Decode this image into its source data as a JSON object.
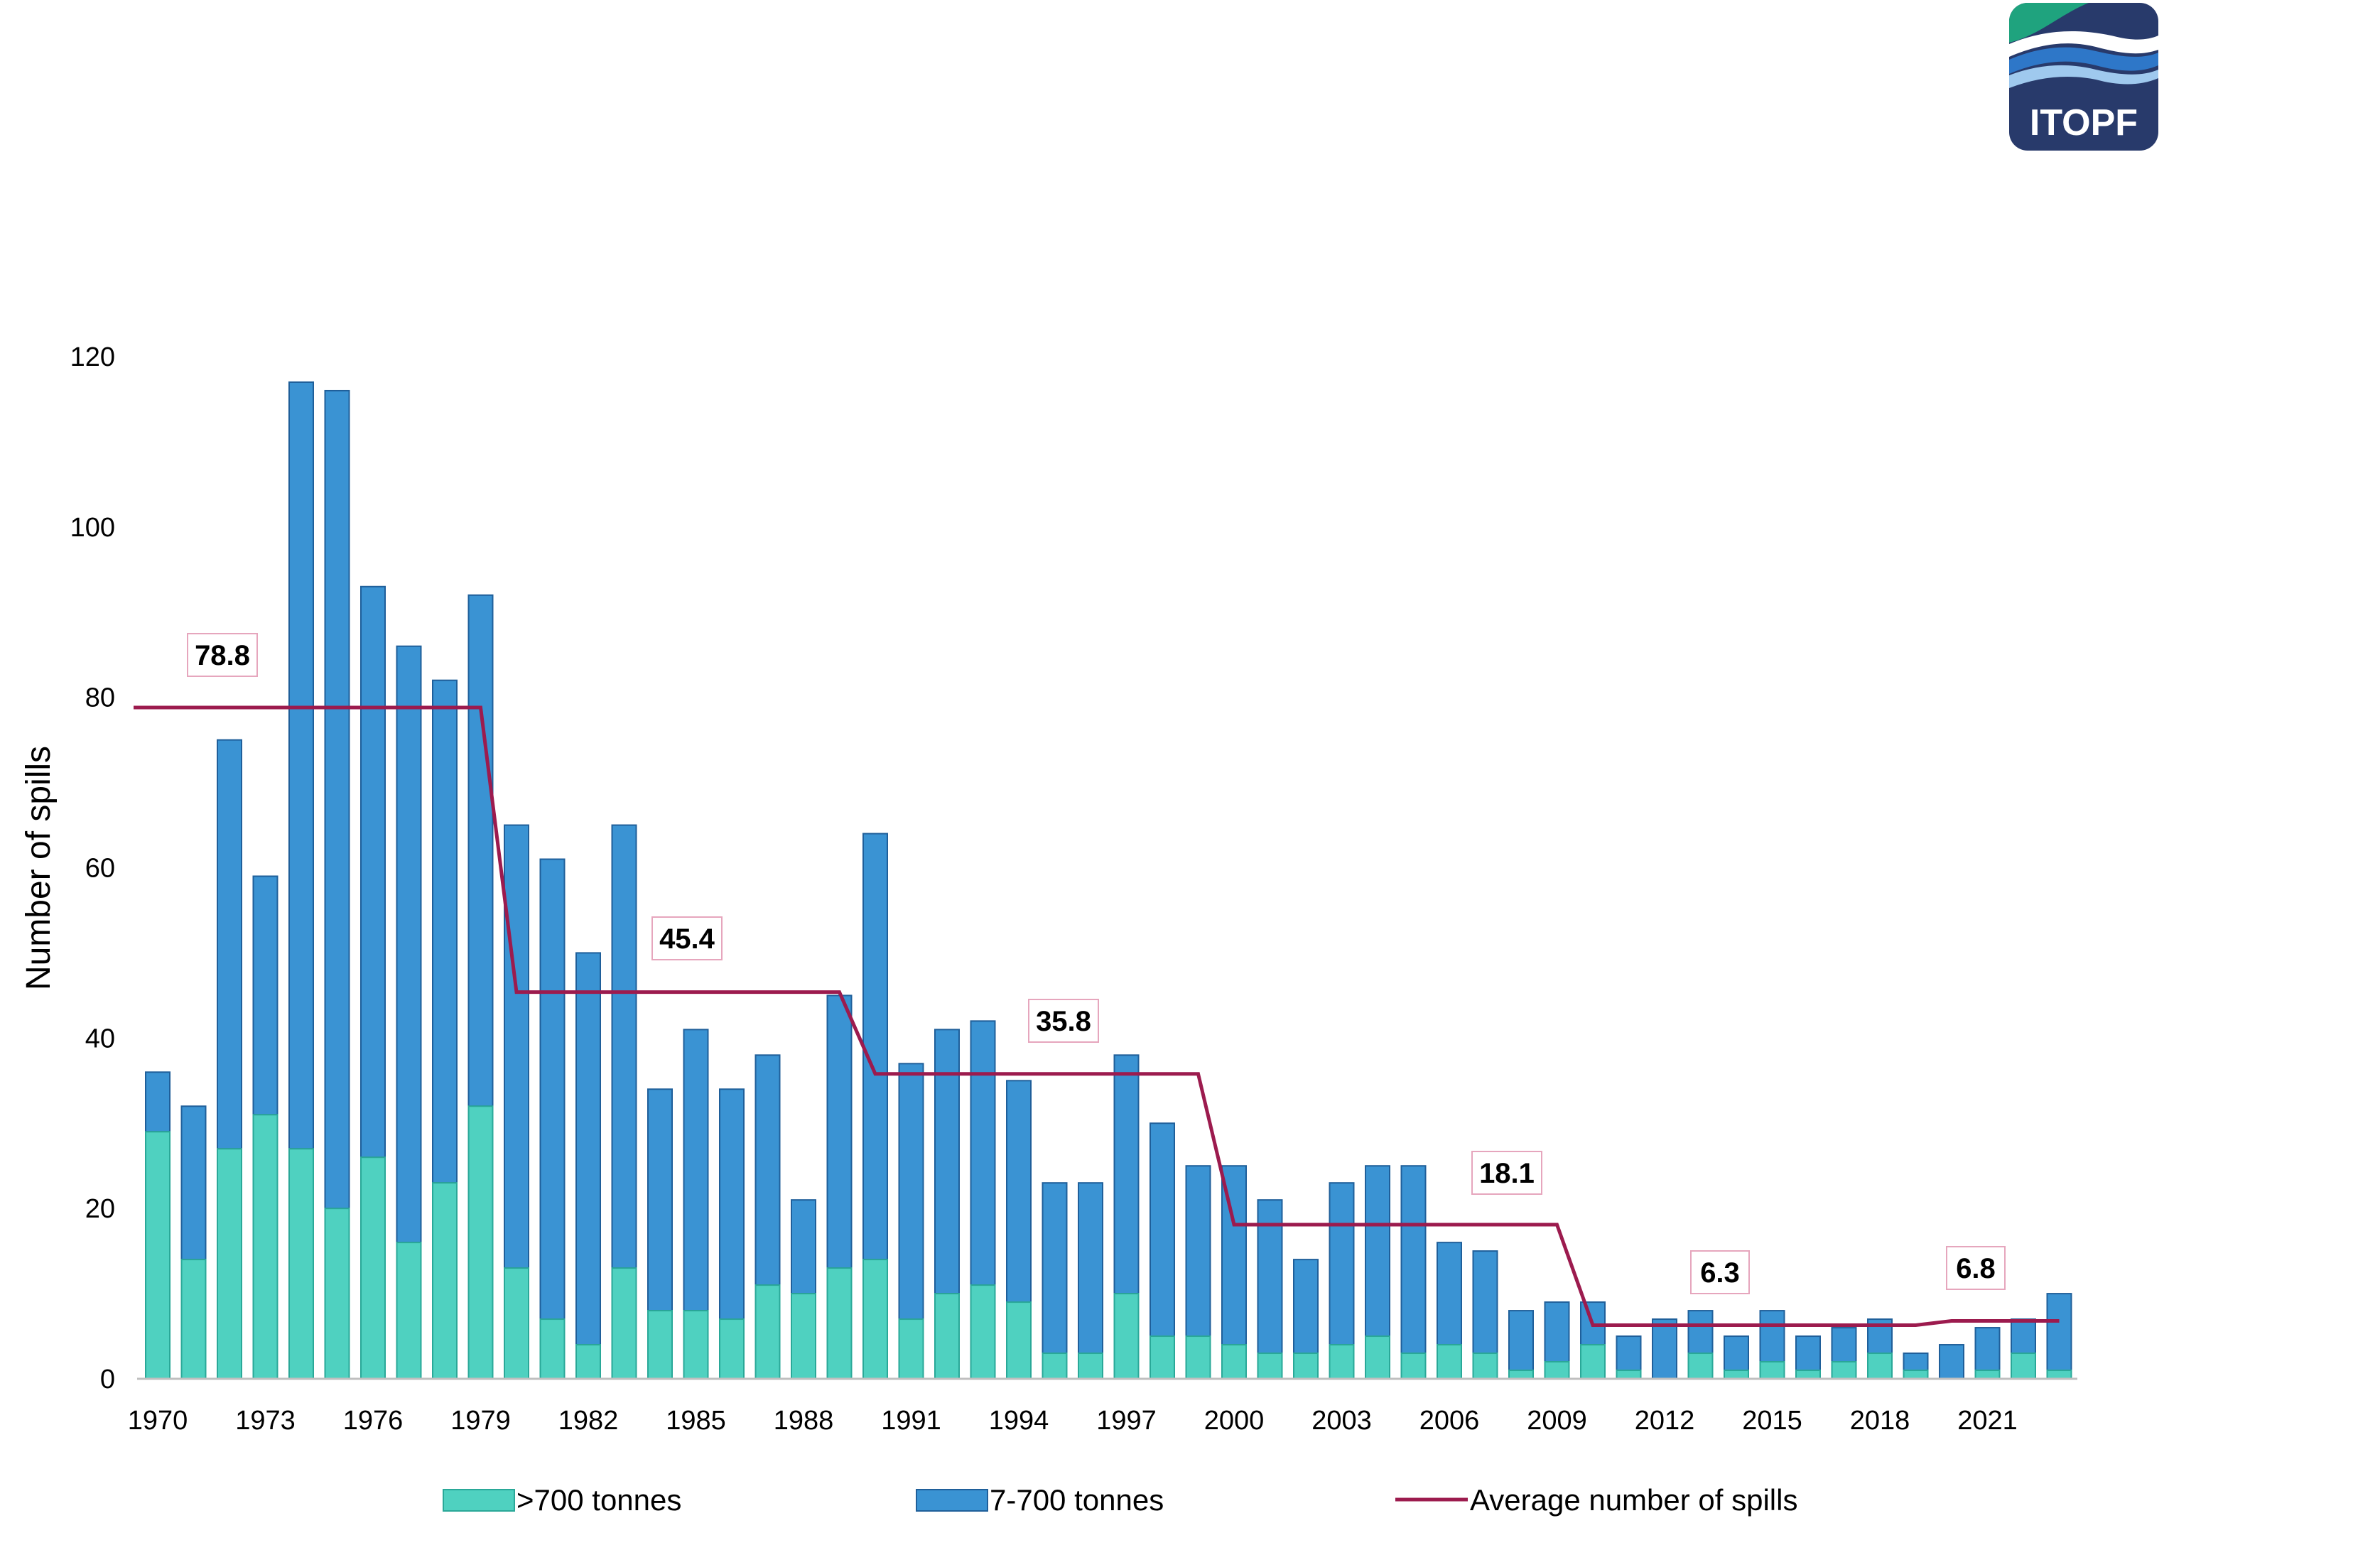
{
  "logo": {
    "text": "ITOPF"
  },
  "colors": {
    "large": "#4FD1C0",
    "large_edge": "#2AA898",
    "medium": "#3A93D3",
    "medium_edge": "#1F5F9A",
    "average": "#9C1B4E",
    "callout_border": "#E6A6BD",
    "logo_navy": "#283A6B",
    "logo_green": "#1FA37E",
    "logo_blue": "#2E77C8"
  },
  "chart_data": {
    "type": "bar",
    "stacked": true,
    "title": "",
    "xlabel": "",
    "ylabel": "Number of spills",
    "ylim": [
      0,
      120
    ],
    "yticks": [
      "0",
      "20",
      "40",
      "60",
      "80",
      "100",
      "120"
    ],
    "xtick_labels": [
      "1970",
      "1973",
      "1976",
      "1979",
      "1982",
      "1985",
      "1988",
      "1991",
      "1994",
      "1997",
      "2000",
      "2003",
      "2006",
      "2009",
      "2012",
      "2015",
      "2018",
      "2021"
    ],
    "categories": [
      "1970",
      "1971",
      "1972",
      "1973",
      "1974",
      "1975",
      "1976",
      "1977",
      "1978",
      "1979",
      "1980",
      "1981",
      "1982",
      "1983",
      "1984",
      "1985",
      "1986",
      "1987",
      "1988",
      "1989",
      "1990",
      "1991",
      "1992",
      "1993",
      "1994",
      "1995",
      "1996",
      "1997",
      "1998",
      "1999",
      "2000",
      "2001",
      "2002",
      "2003",
      "2004",
      "2005",
      "2006",
      "2007",
      "2008",
      "2009",
      "2010",
      "2011",
      "2012",
      "2013",
      "2014",
      "2015",
      "2016",
      "2017",
      "2018",
      "2019",
      "2020",
      "2021",
      "2022",
      "2023"
    ],
    "series": [
      {
        "name": ">700 tonnes",
        "values": [
          29,
          14,
          27,
          31,
          27,
          20,
          26,
          16,
          23,
          32,
          13,
          7,
          4,
          13,
          8,
          8,
          7,
          11,
          10,
          13,
          14,
          7,
          10,
          11,
          9,
          3,
          3,
          10,
          5,
          5,
          4,
          3,
          3,
          4,
          5,
          3,
          4,
          3,
          1,
          2,
          4,
          1,
          0,
          3,
          1,
          2,
          1,
          2,
          3,
          1,
          0,
          1,
          3,
          1
        ]
      },
      {
        "name": "7-700 tonnes",
        "values": [
          7,
          18,
          48,
          28,
          90,
          96,
          67,
          70,
          59,
          60,
          52,
          54,
          46,
          52,
          26,
          33,
          27,
          27,
          11,
          32,
          50,
          30,
          31,
          31,
          26,
          20,
          20,
          28,
          25,
          20,
          21,
          18,
          11,
          19,
          20,
          22,
          12,
          12,
          7,
          7,
          5,
          4,
          7,
          5,
          4,
          6,
          4,
          4,
          4,
          2,
          4,
          5,
          4,
          9
        ]
      }
    ],
    "average": {
      "name": "Average number of spills",
      "periods": [
        {
          "label": "1970s",
          "value": 78.8,
          "callout": "78.8"
        },
        {
          "label": "1980s",
          "value": 45.4,
          "callout": "45.4"
        },
        {
          "label": "1990s",
          "value": 35.8,
          "callout": "35.8"
        },
        {
          "label": "2000s",
          "value": 18.1,
          "callout": "18.1"
        },
        {
          "label": "2010s",
          "value": 6.3,
          "callout": "6.3"
        },
        {
          "label": "2020s",
          "value": 6.8,
          "callout": "6.8"
        }
      ]
    },
    "legend": [
      ">700 tonnes",
      "7-700 tonnes",
      "Average number of spills"
    ]
  }
}
